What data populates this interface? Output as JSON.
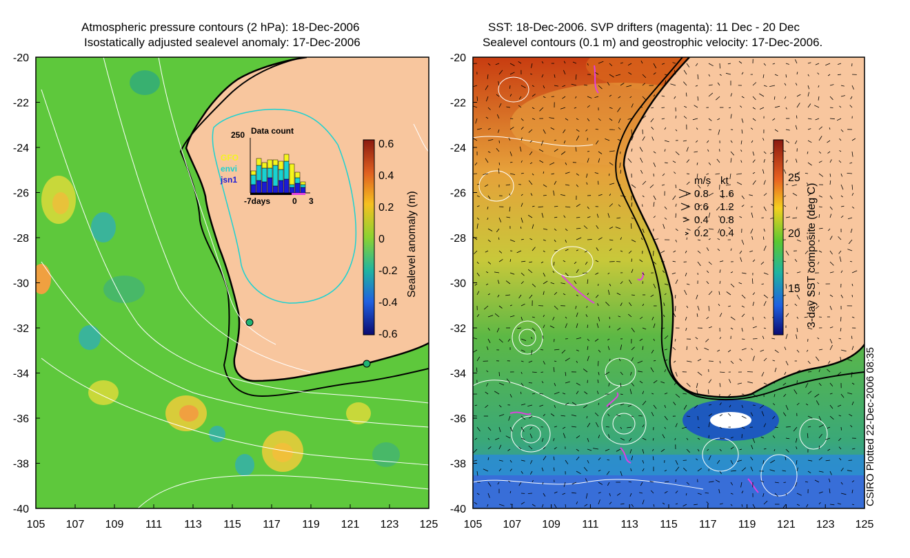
{
  "left_panel": {
    "title_line1": "Atmospheric pressure contours (2 hPa): 18-Dec-2006",
    "title_line2": "Isostatically adjusted sealevel anomaly: 17-Dec-2006",
    "y_ticks": [
      "-20",
      "-22",
      "-24",
      "-26",
      "-28",
      "-30",
      "-32",
      "-34",
      "-36",
      "-38",
      "-40"
    ],
    "x_ticks": [
      "105",
      "107",
      "109",
      "111",
      "113",
      "115",
      "117",
      "119",
      "121",
      "123",
      "125"
    ],
    "colorbar": {
      "label": "Sealevel anomaly (m)",
      "ticks": [
        "0.6",
        "0.4",
        "0.2",
        "0",
        "-0.2",
        "-0.4",
        "-0.6"
      ]
    },
    "inset": {
      "title": "Data count",
      "ymax_label": "250",
      "legend": [
        {
          "name": "GFO",
          "color": "#f5f51e"
        },
        {
          "name": "envi",
          "color": "#19d2d2"
        },
        {
          "name": "jsn1",
          "color": "#1a1ad6"
        }
      ],
      "x_labels": [
        "-7days",
        "0",
        "3"
      ]
    }
  },
  "right_panel": {
    "title_line1": "SST: 18-Dec-2006. SVP drifters (magenta): 11 Dec - 20 Dec",
    "title_line2": "Sealevel contours (0.1 m) and geostrophic velocity: 17-Dec-2006.",
    "y_ticks": [
      "-20",
      "-22",
      "-24",
      "-26",
      "-28",
      "-30",
      "-32",
      "-34",
      "-36",
      "-38",
      "-40"
    ],
    "x_ticks": [
      "105",
      "107",
      "109",
      "111",
      "113",
      "115",
      "117",
      "119",
      "121",
      "123",
      "125"
    ],
    "colorbar": {
      "label": "3-day SST composite (deg C)",
      "ticks": [
        "25",
        "20",
        "15"
      ]
    },
    "velocity_legend": {
      "header_ms": "m/s",
      "header_kt": "kt",
      "rows": [
        {
          "ms": "0.8",
          "kt": "1.6"
        },
        {
          "ms": "0.6",
          "kt": "1.2"
        },
        {
          "ms": "0.4",
          "kt": "0.8"
        },
        {
          "ms": "0.2",
          "kt": "0.4"
        }
      ]
    }
  },
  "credit": "CSIRO Plotted 22-Dec-2006 08:35",
  "colors": {
    "land": "#f8c69e",
    "ocean_left": "#5ec83c",
    "ocean_right_north": "#e8b43c",
    "ocean_right_south": "#2aa0e6",
    "coast_line": "#000000",
    "contour": "#ffffff",
    "drifter": "#e040e0"
  }
}
